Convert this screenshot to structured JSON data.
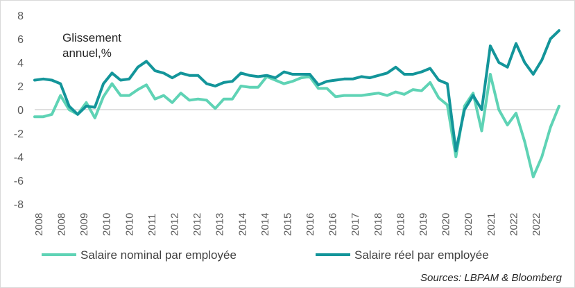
{
  "chart_data": {
    "type": "line",
    "annotation": [
      "Glissement",
      "annuel,%"
    ],
    "ylim": [
      -8,
      8
    ],
    "yticks": [
      "8",
      "6",
      "4",
      "2",
      "0",
      "-2",
      "-4",
      "-6",
      "-8"
    ],
    "xtick_labels": [
      "2008",
      "2008",
      "2009",
      "2010",
      "2010",
      "2011",
      "2012",
      "2012",
      "2013",
      "2014",
      "2014",
      "2015",
      "2016",
      "2016",
      "2017",
      "2018",
      "2018",
      "2019",
      "2020",
      "2020",
      "2021",
      "2022",
      "2022"
    ],
    "source": "Sources: LBPAM & Bloomberg",
    "colors": {
      "nominal": "#5fd3b5",
      "reel": "#13959a",
      "axis": "#bfbfbf"
    },
    "series": [
      {
        "name": "Salaire nominal par employée",
        "values": [
          -0.6,
          -0.6,
          -0.4,
          1.2,
          0,
          -0.4,
          0.6,
          -0.7,
          1.1,
          2.2,
          1.2,
          1.2,
          1.7,
          2.1,
          0.9,
          1.2,
          0.6,
          1.4,
          0.8,
          0.9,
          0.8,
          0.1,
          0.9,
          0.9,
          2.0,
          1.9,
          1.9,
          2.8,
          2.5,
          2.2,
          2.4,
          2.7,
          2.8,
          1.8,
          1.8,
          1.1,
          1.2,
          1.2,
          1.2,
          1.3,
          1.4,
          1.2,
          1.5,
          1.3,
          1.7,
          1.6,
          2.3,
          1.0,
          0.4,
          -4.0,
          0.3,
          1.4,
          -1.8,
          3.0,
          0.0,
          -1.3,
          -0.3,
          -2.7,
          -5.7,
          -4.0,
          -1.5,
          0.3
        ]
      },
      {
        "name": "Salaire réel  par employée",
        "values": [
          2.5,
          2.6,
          2.5,
          2.2,
          0.3,
          -0.4,
          0.3,
          0.2,
          2.2,
          3.1,
          2.5,
          2.6,
          3.6,
          4.1,
          3.3,
          3.1,
          2.7,
          3.1,
          2.9,
          2.9,
          2.2,
          2.0,
          2.3,
          2.4,
          3.1,
          2.9,
          2.8,
          2.9,
          2.7,
          3.2,
          3.0,
          3.0,
          3.0,
          2.1,
          2.4,
          2.5,
          2.6,
          2.6,
          2.8,
          2.7,
          2.9,
          3.1,
          3.6,
          3.0,
          3.0,
          3.2,
          3.5,
          2.5,
          2.2,
          -3.5,
          0.0,
          1.2,
          0.0,
          5.4,
          4.0,
          3.6,
          5.6,
          4.0,
          3.0,
          4.2,
          6.0,
          6.7
        ]
      }
    ]
  }
}
